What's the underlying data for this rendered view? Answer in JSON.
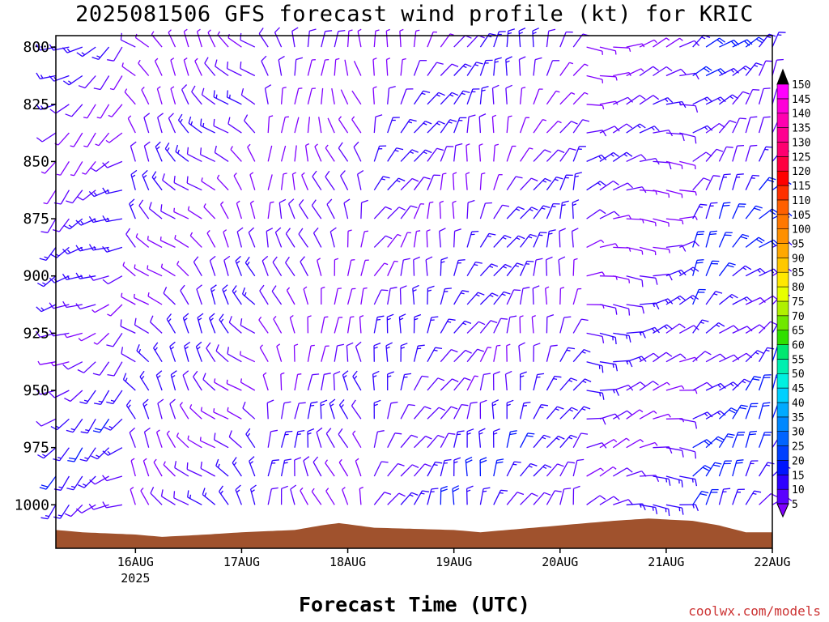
{
  "title": "2025081506 GFS forecast wind profile (kt) for KRIC",
  "xlabel": "Forecast Time (UTC)",
  "credit": "coolwx.com/models",
  "chart_data": {
    "type": "wind_barb_time_height",
    "units": "kt",
    "y_axis": {
      "quantity": "pressure (hPa)",
      "ticks": [
        800,
        825,
        850,
        875,
        900,
        925,
        950,
        975,
        1000
      ],
      "range": [
        795,
        1019
      ],
      "inverted": true
    },
    "x_axis": {
      "date_ticks": [
        "16AUG",
        "17AUG",
        "18AUG",
        "19AUG",
        "20AUG",
        "21AUG",
        "22AUG"
      ],
      "year_label": "2025",
      "start_hour": 6,
      "end_hour": 168
    },
    "barb_levels": [
      800,
      812.5,
      825,
      837.5,
      850,
      862.5,
      875,
      887.5,
      900,
      912.5,
      925,
      937.5,
      950,
      962.5,
      975,
      987.5,
      1000,
      1012.5
    ],
    "forecast_step_hours": 3,
    "colorbar": {
      "levels": [
        5,
        10,
        15,
        20,
        25,
        30,
        35,
        40,
        45,
        50,
        55,
        60,
        65,
        70,
        75,
        80,
        85,
        90,
        95,
        100,
        105,
        110,
        115,
        120,
        125,
        130,
        135,
        140,
        145,
        150
      ],
      "colors": [
        "#8000ff",
        "#5a00ff",
        "#2e00ff",
        "#0014ff",
        "#0040ff",
        "#0064ff",
        "#0088ff",
        "#00aaff",
        "#00d0ff",
        "#00f0e0",
        "#00f0b0",
        "#00e870",
        "#30e000",
        "#70e800",
        "#b0f000",
        "#e8ff00",
        "#ffe800",
        "#ffc800",
        "#ffa800",
        "#ff9000",
        "#ff7800",
        "#ff6000",
        "#ff3000",
        "#ff0000",
        "#ff0040",
        "#ff0070",
        "#ff0090",
        "#ff00b0",
        "#ff00d8",
        "#ff00ff"
      ],
      "under_color": "#8000ff",
      "over_color": "#000000"
    },
    "surface_pressure": [
      [
        6,
        1011
      ],
      [
        12,
        1012
      ],
      [
        24,
        1013
      ],
      [
        30,
        1014
      ],
      [
        40,
        1013
      ],
      [
        48,
        1012
      ],
      [
        60,
        1011
      ],
      [
        66,
        1009
      ],
      [
        70,
        1008
      ],
      [
        78,
        1010
      ],
      [
        96,
        1011
      ],
      [
        102,
        1012
      ],
      [
        108,
        1011
      ],
      [
        120,
        1009
      ],
      [
        126,
        1008
      ],
      [
        132,
        1007
      ],
      [
        140,
        1006
      ],
      [
        150,
        1007
      ],
      [
        156,
        1009
      ],
      [
        162,
        1012
      ],
      [
        168,
        1012
      ]
    ],
    "wind_regimes": [
      {
        "hours": [
          6,
          24
        ],
        "dir_deg": 235,
        "speed_kt": 12
      },
      {
        "hours": [
          24,
          52
        ],
        "dir_deg": 320,
        "speed_kt": 10
      },
      {
        "hours": [
          52,
          78
        ],
        "dir_deg": 350,
        "speed_kt": 8
      },
      {
        "hours": [
          78,
          126
        ],
        "dir_deg": 20,
        "speed_kt": 12
      },
      {
        "hours": [
          126,
          150
        ],
        "dir_deg": 80,
        "speed_kt": 10
      },
      {
        "hours": [
          150,
          168
        ],
        "dir_deg": 40,
        "speed_kt": 16
      }
    ]
  }
}
